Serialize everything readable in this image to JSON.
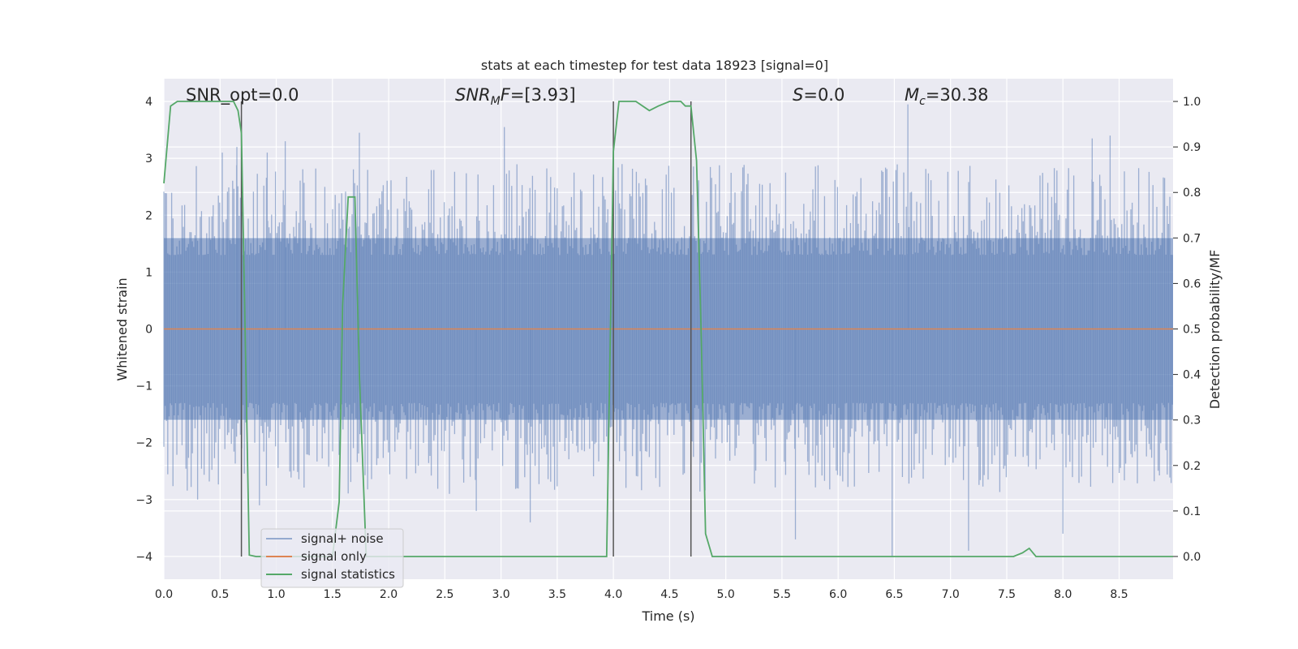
{
  "chart_data": {
    "type": "line",
    "title": "stats at each timestep for test data 18923 [signal=0]",
    "xlabel": "Time (s)",
    "ylabel": "Whitened strain",
    "y2label": "Detection probability/MF",
    "xlim": [
      0.0,
      8.98
    ],
    "ylim": [
      -4.4,
      4.4
    ],
    "y2lim": [
      -0.05,
      1.05
    ],
    "x_ticks": [
      0.0,
      0.5,
      1.0,
      1.5,
      2.0,
      2.5,
      3.0,
      3.5,
      4.0,
      4.5,
      5.0,
      5.5,
      6.0,
      6.5,
      7.0,
      7.5,
      8.0,
      8.5
    ],
    "x_tick_labels": [
      "0.0",
      "0.5",
      "1.0",
      "1.5",
      "2.0",
      "2.5",
      "3.0",
      "3.5",
      "4.0",
      "4.5",
      "5.0",
      "5.5",
      "6.0",
      "6.5",
      "7.0",
      "7.5",
      "8.0",
      "8.5"
    ],
    "y_ticks": [
      -4,
      -3,
      -2,
      -1,
      0,
      1,
      2,
      3,
      4
    ],
    "y_tick_labels": [
      "−4",
      "−3",
      "−2",
      "−1",
      "0",
      "1",
      "2",
      "3",
      "4"
    ],
    "y2_ticks": [
      0.0,
      0.1,
      0.2,
      0.3,
      0.4,
      0.5,
      0.6,
      0.7,
      0.8,
      0.9,
      1.0
    ],
    "y2_tick_labels": [
      "0.0",
      "0.1",
      "0.2",
      "0.3",
      "0.4",
      "0.5",
      "0.6",
      "0.7",
      "0.8",
      "0.9",
      "1.0"
    ],
    "grid": true,
    "legend_position": "lower-left",
    "colors": {
      "noise": "#4c72b0",
      "signal": "#dd8452",
      "statistics": "#55a868",
      "marker": "#555555",
      "background": "#eaeaf2",
      "grid": "#ffffff"
    },
    "annotations": [
      {
        "label": "SNR_opt",
        "value": "=0.0"
      },
      {
        "label": "SNR",
        "sub": "M",
        "suffix": "F",
        "value": "=[3.93]"
      },
      {
        "label": "S",
        "value": "=0.0"
      },
      {
        "label": "M",
        "sub": "c",
        "value": "=30.38"
      }
    ],
    "noise_band": [
      -1.6,
      1.6
    ],
    "noise_peaks_x": [
      0.52,
      0.65,
      0.92,
      1.08,
      1.74,
      3.03,
      6.62,
      8.26,
      8.42
    ],
    "noise_peaks_y": [
      3.1,
      3.2,
      3.1,
      3.3,
      3.45,
      3.55,
      3.95,
      3.35,
      3.4
    ],
    "noise_troughs_x": [
      0.3,
      0.85,
      2.78,
      3.26,
      5.62,
      6.48,
      7.16,
      8.0
    ],
    "noise_troughs_y": [
      -3.0,
      -3.1,
      -3.2,
      -3.4,
      -3.7,
      -4.0,
      -3.9,
      -3.6
    ],
    "signal_x": [
      0.0,
      8.98
    ],
    "signal_y": [
      0.0,
      0.0
    ],
    "marker_lines_x": [
      0.69,
      4.0,
      4.69
    ],
    "marker_lines_y": [
      -4.0,
      4.0
    ],
    "series": [
      {
        "name": "signal statistics",
        "axis": "right",
        "x": [
          0.0,
          0.06,
          0.12,
          0.2,
          0.3,
          0.5,
          0.62,
          0.66,
          0.69,
          0.76,
          0.82,
          0.9,
          1.0,
          1.5,
          1.56,
          1.59,
          1.64,
          1.7,
          1.74,
          1.8,
          2.0,
          3.0,
          3.94,
          4.0,
          4.05,
          4.2,
          4.32,
          4.4,
          4.5,
          4.6,
          4.64,
          4.69,
          4.74,
          4.78,
          4.82,
          4.88,
          5.0,
          6.0,
          7.0,
          7.56,
          7.64,
          7.7,
          7.76,
          7.85,
          8.0,
          8.98
        ],
        "y": [
          0.82,
          0.99,
          1.0,
          1.0,
          1.0,
          1.0,
          1.0,
          0.98,
          0.93,
          0.003,
          0.0,
          0.0,
          0.0,
          0.0,
          0.12,
          0.55,
          0.79,
          0.79,
          0.4,
          0.0,
          0.0,
          0.0,
          0.0,
          0.89,
          1.0,
          1.0,
          0.98,
          0.99,
          1.0,
          1.0,
          0.99,
          0.99,
          0.87,
          0.5,
          0.05,
          0.0,
          0.0,
          0.0,
          0.0,
          0.0,
          0.008,
          0.018,
          0.0,
          0.0,
          0.0,
          0.0
        ]
      },
      {
        "name": "signal+ noise",
        "axis": "left"
      },
      {
        "name": "signal only",
        "axis": "left"
      }
    ],
    "legend": [
      "signal+ noise",
      "signal only",
      "signal statistics"
    ]
  }
}
